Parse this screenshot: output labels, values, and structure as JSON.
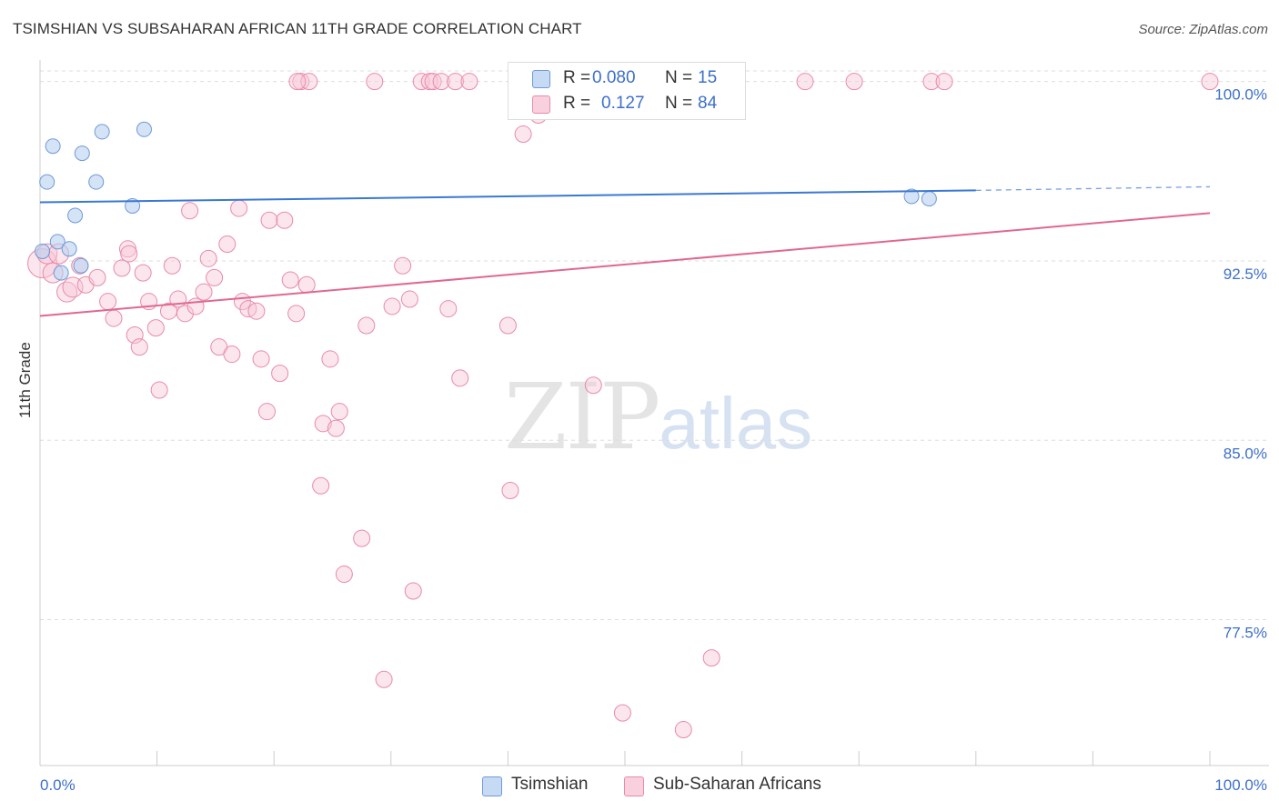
{
  "title": "TSIMSHIAN VS SUBSAHARAN AFRICAN 11TH GRADE CORRELATION CHART",
  "source": "Source: ZipAtlas.com",
  "watermark": {
    "zip": "ZIP",
    "atlas": "atlas"
  },
  "legend": {
    "series1": {
      "r_label": "R =",
      "r_value": "0.080",
      "n_label": "N =",
      "n_value": "15"
    },
    "series2": {
      "r_label": "R =",
      "r_value": "0.127",
      "n_label": "N =",
      "n_value": "84"
    }
  },
  "colors": {
    "tsimshian_fill": "#b8d0f0",
    "tsimshian_stroke": "#6f9ad8",
    "tsimshian_line": "#3a78d4",
    "subsaharan_fill": "#f8c8d8",
    "subsaharan_stroke": "#e98aa8",
    "subsaharan_line": "#e06890",
    "tick_label": "#3d6fc9",
    "grid": "#dddddd"
  },
  "chart_data": {
    "type": "scatter",
    "title": "TSIMSHIAN VS SUBSAHARAN AFRICAN 11TH GRADE CORRELATION CHART",
    "xlabel": "",
    "ylabel": "11th Grade",
    "xlim": [
      0,
      100
    ],
    "ylim": [
      71.4,
      100.9
    ],
    "x_tick_labels": [
      "0.0%",
      "100.0%"
    ],
    "y_ticks": [
      100.0,
      92.5,
      85.0,
      77.5
    ],
    "y_tick_labels": [
      "100.0%",
      "92.5%",
      "85.0%",
      "77.5%"
    ],
    "grid": "horizontal dashed",
    "legend_position": "top-center",
    "series": [
      {
        "name": "Tsimshian",
        "points": [
          [
            0.2,
            92.9
          ],
          [
            0.6,
            95.8
          ],
          [
            1.1,
            97.3
          ],
          [
            1.5,
            93.3
          ],
          [
            1.8,
            92.0
          ],
          [
            2.5,
            93.0
          ],
          [
            3.0,
            94.4
          ],
          [
            3.5,
            92.3
          ],
          [
            3.6,
            97.0
          ],
          [
            4.8,
            95.8
          ],
          [
            5.3,
            97.9
          ],
          [
            7.9,
            94.8
          ],
          [
            8.9,
            98.0
          ],
          [
            74.5,
            95.2
          ],
          [
            76.0,
            95.1
          ]
        ],
        "trend": {
          "x": [
            0,
            80
          ],
          "y": [
            94.95,
            95.45
          ],
          "dashed_to": [
            100,
            95.6
          ]
        }
      },
      {
        "name": "Sub-Saharan Africans",
        "points": [
          [
            0.2,
            92.4
          ],
          [
            0.6,
            92.8
          ],
          [
            1.1,
            92.0
          ],
          [
            1.6,
            92.8
          ],
          [
            2.3,
            91.2
          ],
          [
            2.8,
            91.4
          ],
          [
            3.4,
            92.3
          ],
          [
            3.9,
            91.5
          ],
          [
            4.9,
            91.8
          ],
          [
            5.8,
            90.8
          ],
          [
            6.3,
            90.1
          ],
          [
            7.0,
            92.2
          ],
          [
            7.5,
            93.0
          ],
          [
            7.6,
            92.8
          ],
          [
            8.1,
            89.4
          ],
          [
            8.5,
            88.9
          ],
          [
            8.8,
            92.0
          ],
          [
            9.3,
            90.8
          ],
          [
            9.9,
            89.7
          ],
          [
            10.2,
            87.1
          ],
          [
            11.0,
            90.4
          ],
          [
            11.3,
            92.3
          ],
          [
            11.8,
            90.9
          ],
          [
            12.4,
            90.3
          ],
          [
            12.8,
            94.6
          ],
          [
            13.3,
            90.6
          ],
          [
            14.0,
            91.2
          ],
          [
            14.4,
            92.6
          ],
          [
            14.9,
            91.8
          ],
          [
            15.3,
            88.9
          ],
          [
            16.0,
            93.2
          ],
          [
            16.4,
            88.6
          ],
          [
            17.0,
            94.7
          ],
          [
            17.3,
            90.8
          ],
          [
            17.8,
            90.5
          ],
          [
            18.5,
            90.4
          ],
          [
            18.9,
            88.4
          ],
          [
            19.4,
            86.2
          ],
          [
            19.6,
            94.2
          ],
          [
            20.5,
            87.8
          ],
          [
            20.9,
            94.2
          ],
          [
            21.4,
            91.7
          ],
          [
            21.9,
            90.3
          ],
          [
            22.3,
            100.0
          ],
          [
            22.8,
            91.5
          ],
          [
            23.0,
            100.0
          ],
          [
            24.0,
            83.1
          ],
          [
            24.2,
            85.7
          ],
          [
            24.8,
            88.4
          ],
          [
            25.3,
            85.5
          ],
          [
            25.6,
            86.2
          ],
          [
            26.0,
            79.4
          ],
          [
            27.5,
            80.9
          ],
          [
            27.9,
            89.8
          ],
          [
            28.6,
            100.0
          ],
          [
            29.4,
            75.0
          ],
          [
            30.1,
            90.6
          ],
          [
            31.0,
            92.3
          ],
          [
            31.6,
            90.9
          ],
          [
            31.9,
            78.7
          ],
          [
            32.6,
            100.0
          ],
          [
            33.3,
            100.0
          ],
          [
            33.6,
            100.0
          ],
          [
            34.3,
            100.0
          ],
          [
            34.9,
            90.5
          ],
          [
            35.5,
            100.0
          ],
          [
            35.9,
            87.6
          ],
          [
            36.7,
            100.0
          ],
          [
            40.0,
            89.8
          ],
          [
            40.2,
            82.9
          ],
          [
            41.3,
            97.8
          ],
          [
            42.6,
            98.6
          ],
          [
            47.3,
            87.3
          ],
          [
            49.8,
            73.6
          ],
          [
            52.6,
            100.0
          ],
          [
            55.0,
            72.9
          ],
          [
            55.6,
            99.0
          ],
          [
            57.4,
            75.9
          ],
          [
            65.4,
            100.0
          ],
          [
            69.6,
            100.0
          ],
          [
            76.2,
            100.0
          ],
          [
            77.3,
            100.0
          ],
          [
            100.0,
            100.0
          ],
          [
            22.0,
            100.0
          ]
        ],
        "trend": {
          "x": [
            0,
            100
          ],
          "y": [
            90.2,
            94.5
          ]
        }
      }
    ]
  }
}
